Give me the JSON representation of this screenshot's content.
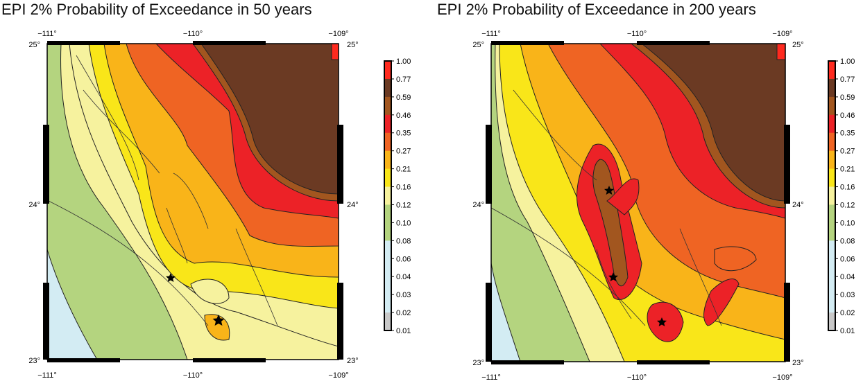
{
  "chart_data": [
    {
      "type": "heatmap",
      "title": "EPI 2% Probability of Exceedance in 50 years",
      "x_tick_labels": [
        "−111°",
        "−110°",
        "−109°"
      ],
      "y_tick_labels": [
        "25°",
        "24°",
        "23°"
      ],
      "xlim": [
        -111,
        -109
      ],
      "ylim": [
        23,
        25
      ],
      "colorbar": {
        "labels": [
          "1.00",
          "0.77",
          "0.59",
          "0.46",
          "0.35",
          "0.27",
          "0.21",
          "0.16",
          "0.12",
          "0.10",
          "0.08",
          "0.06",
          "0.04",
          "0.03",
          "0.02",
          "0.01"
        ],
        "colors": [
          "#ff2a1f",
          "#6b3a23",
          "#a2561f",
          "#ec2227",
          "#ef6423",
          "#f9b419",
          "#f9e619",
          "#f6f29e",
          "#b4d47f",
          "#b4d47f",
          "#d3ecf3",
          "#d3ecf3",
          "#d3ecf3",
          "#d3ecf3",
          "#c8c8c8",
          "#ffffff"
        ]
      }
    },
    {
      "type": "heatmap",
      "title": "EPI 2% Probability of Exceedance in 200 years",
      "x_tick_labels": [
        "−111°",
        "−110°",
        "−109°"
      ],
      "y_tick_labels": [
        "25°",
        "24°",
        "23°"
      ],
      "xlim": [
        -111,
        -109
      ],
      "ylim": [
        23,
        25
      ],
      "colorbar": {
        "labels": [
          "1.00",
          "0.77",
          "0.59",
          "0.46",
          "0.35",
          "0.27",
          "0.21",
          "0.16",
          "0.12",
          "0.10",
          "0.08",
          "0.06",
          "0.04",
          "0.03",
          "0.02",
          "0.01"
        ],
        "colors": [
          "#ff2a1f",
          "#6b3a23",
          "#a2561f",
          "#ec2227",
          "#ef6423",
          "#f9b419",
          "#f9e619",
          "#f6f29e",
          "#b4d47f",
          "#b4d47f",
          "#d3ecf3",
          "#d3ecf3",
          "#d3ecf3",
          "#d3ecf3",
          "#c8c8c8",
          "#ffffff"
        ]
      }
    }
  ]
}
